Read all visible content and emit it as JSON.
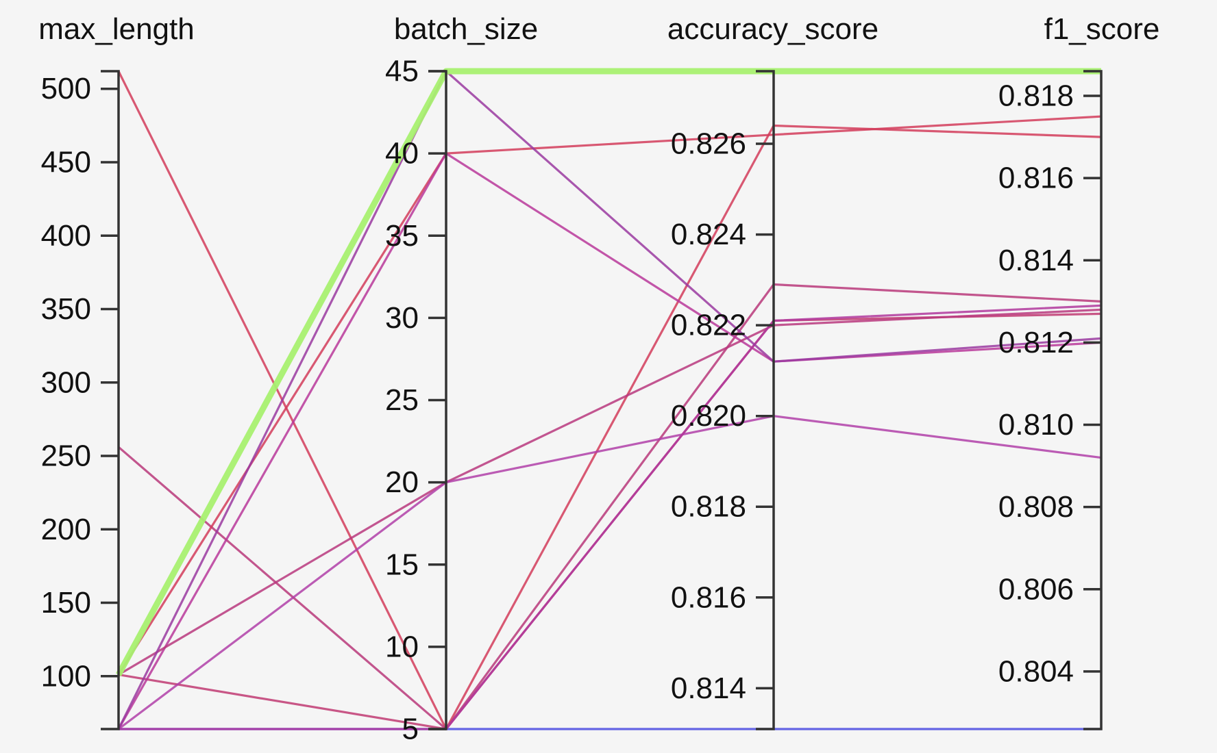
{
  "chart_data": {
    "type": "parallel_coordinates",
    "dimensions": [
      {
        "key": "max_length",
        "label": "max_length",
        "range": [
          64,
          512
        ],
        "ticks": [
          100,
          150,
          200,
          250,
          300,
          350,
          400,
          450,
          500
        ],
        "labels": [
          "100",
          "150",
          "200",
          "250",
          "300",
          "350",
          "400",
          "450",
          "500"
        ]
      },
      {
        "key": "batch_size",
        "label": "batch_size",
        "range": [
          5,
          45
        ],
        "ticks": [
          5,
          10,
          15,
          20,
          25,
          30,
          35,
          40,
          45
        ],
        "labels": [
          "5",
          "10",
          "15",
          "20",
          "25",
          "30",
          "35",
          "40",
          "45"
        ]
      },
      {
        "key": "accuracy_score",
        "label": "accuracy_score",
        "range": [
          0.8131,
          0.8276
        ],
        "ticks": [
          0.814,
          0.816,
          0.818,
          0.82,
          0.822,
          0.824,
          0.826
        ],
        "labels": [
          "0.814",
          "0.816",
          "0.818",
          "0.820",
          "0.822",
          "0.824",
          "0.826"
        ]
      },
      {
        "key": "f1_score",
        "label": "f1_score",
        "range": [
          0.8026,
          0.8186
        ],
        "ticks": [
          0.804,
          0.806,
          0.808,
          0.81,
          0.812,
          0.814,
          0.816,
          0.818
        ],
        "labels": [
          "0.804",
          "0.806",
          "0.808",
          "0.810",
          "0.812",
          "0.814",
          "0.816",
          "0.818"
        ]
      }
    ],
    "series": [
      {
        "values": [
          64,
          5,
          0.8131,
          0.8026
        ],
        "color": "#4a4ae0",
        "highlight": false
      },
      {
        "values": [
          512,
          5,
          0.8264,
          0.817
        ],
        "color": "#d23c5a",
        "highlight": false
      },
      {
        "values": [
          256,
          5,
          0.8229,
          0.813
        ],
        "color": "#b8387a",
        "highlight": false
      },
      {
        "values": [
          101,
          40,
          0.8262,
          0.8175
        ],
        "color": "#d23c5a",
        "highlight": false
      },
      {
        "values": [
          101,
          5,
          0.8221,
          0.8127
        ],
        "color": "#c03a72",
        "highlight": false
      },
      {
        "values": [
          64,
          40,
          0.8212,
          0.812
        ],
        "color": "#b8389a",
        "highlight": false
      },
      {
        "values": [
          101,
          20,
          0.822,
          0.8128
        ],
        "color": "#b8387e",
        "highlight": false
      },
      {
        "values": [
          64,
          20,
          0.82,
          0.8092
        ],
        "color": "#b040a8",
        "highlight": false
      },
      {
        "values": [
          64,
          5,
          0.8221,
          0.8129
        ],
        "color": "#b0389c",
        "highlight": false
      },
      {
        "values": [
          64,
          45,
          0.8212,
          0.8121
        ],
        "color": "#9a3aa0",
        "highlight": false
      },
      {
        "values": [
          101,
          45,
          0.8276,
          0.8186
        ],
        "color": "#a8f070",
        "highlight": true
      }
    ]
  }
}
